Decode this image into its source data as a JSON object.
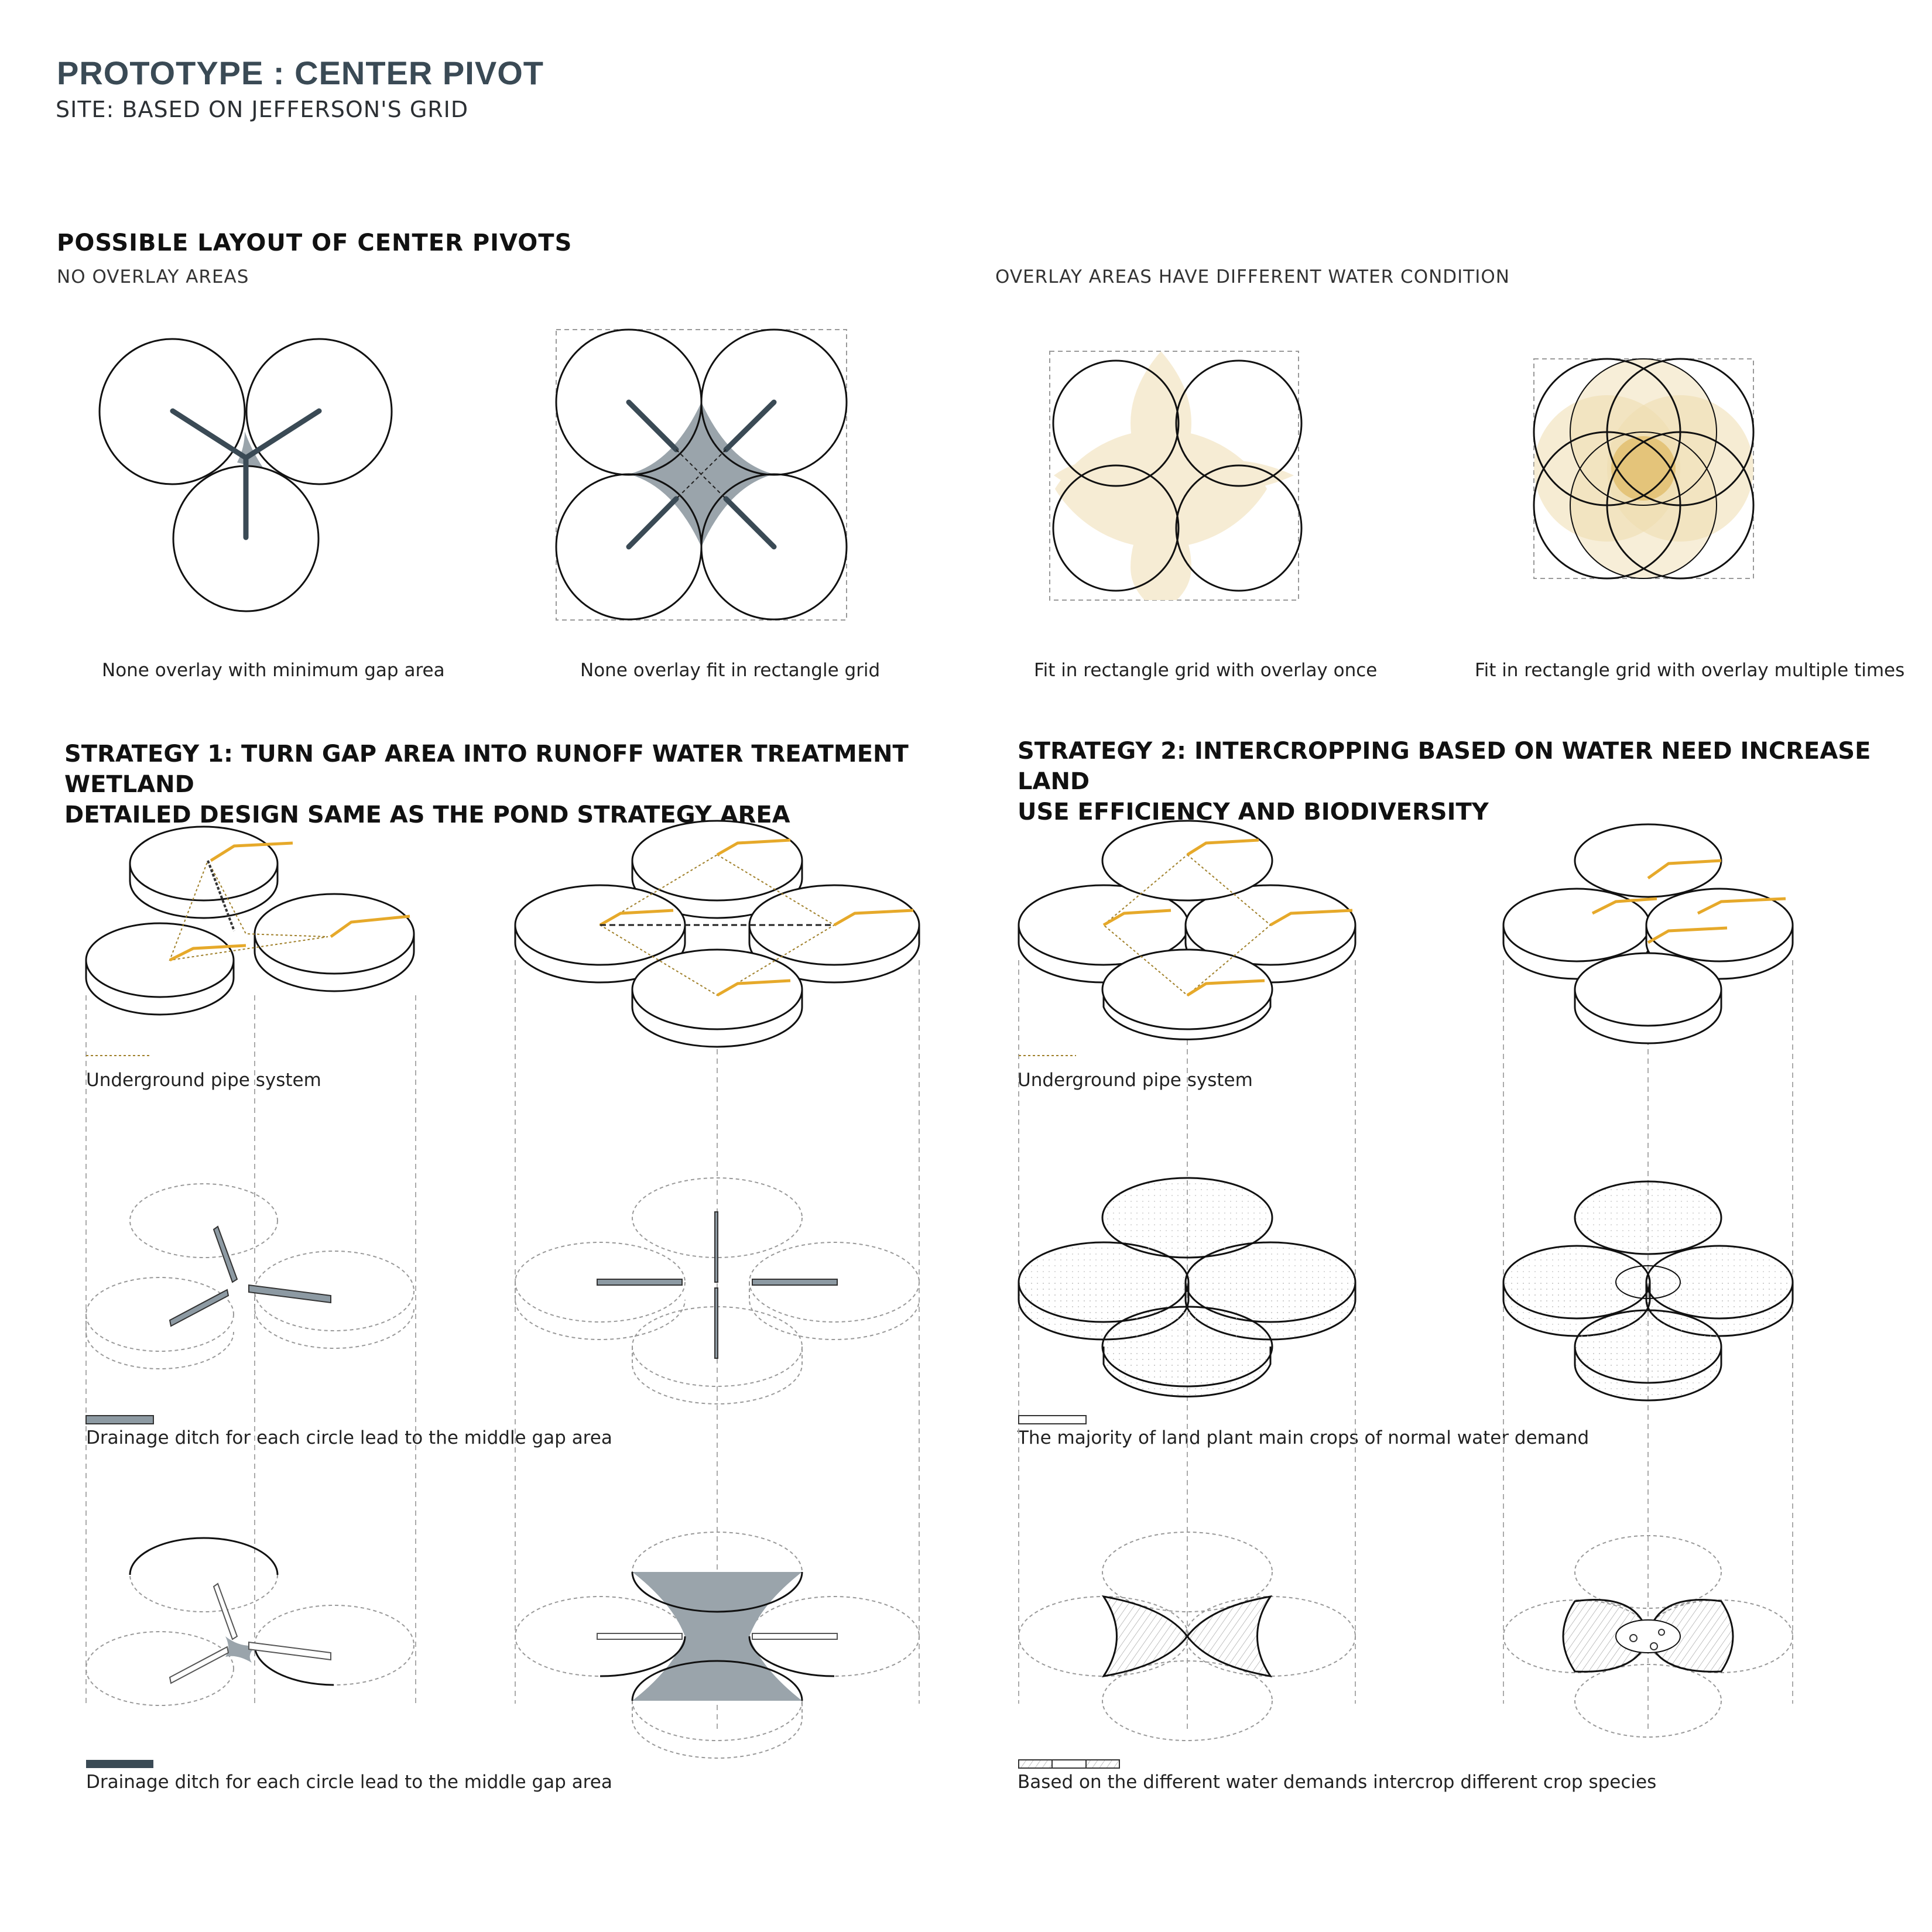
{
  "header": {
    "title": "PROTOTYPE : CENTER PIVOT",
    "subtitle": "SITE: BASED ON JEFFERSON'S GRID"
  },
  "layouts": {
    "title": "POSSIBLE LAYOUT OF CENTER PIVOTS",
    "left_group_label": "NO OVERLAY AREAS",
    "right_group_label": "OVERLAY AREAS HAVE DIFFERENT WATER CONDITION",
    "captions": [
      "None overlay with minimum gap area",
      "None overlay fit in rectangle grid",
      "Fit in rectangle grid with overlay once",
      "Fit in rectangle grid with overlay multiple times"
    ]
  },
  "strategy1": {
    "line1": "STRATEGY 1: TURN GAP AREA INTO RUNOFF WATER TREATMENT WETLAND",
    "line2": "DETAILED DESIGN SAME AS THE POND STRATEGY AREA",
    "legend_pipe": "Underground pipe system",
    "legend_ditch": "Drainage ditch for each circle lead to the middle gap area",
    "legend_gap": "Drainage ditch for each circle lead to the middle gap area"
  },
  "strategy2": {
    "line1": "STRATEGY 2: INTERCROPPING BASED ON WATER NEED INCREASE LAND",
    "line2": "USE EFFICIENCY AND BIODIVERSITY",
    "legend_pipe": "Underground pipe system",
    "legend_main_crops": "The majority of land plant main crops of normal water demand",
    "legend_intercrop": "Based on the different water demands intercrop different crop species"
  },
  "colors": {
    "outline": "#111111",
    "arm": "#3a4a55",
    "gap_fill": "#9aa4ab",
    "overlay_light": "#f6ecd4",
    "overlay_mid": "#efdcae",
    "overlay_dark": "#e4c47a",
    "pivot_yellow": "#e6a92a",
    "pipe_dotted": "#a0802a",
    "ditch_fill": "#8d9aa3",
    "gap_dark": "#3a4a55",
    "guide_dashed": "#aaaaaa"
  }
}
